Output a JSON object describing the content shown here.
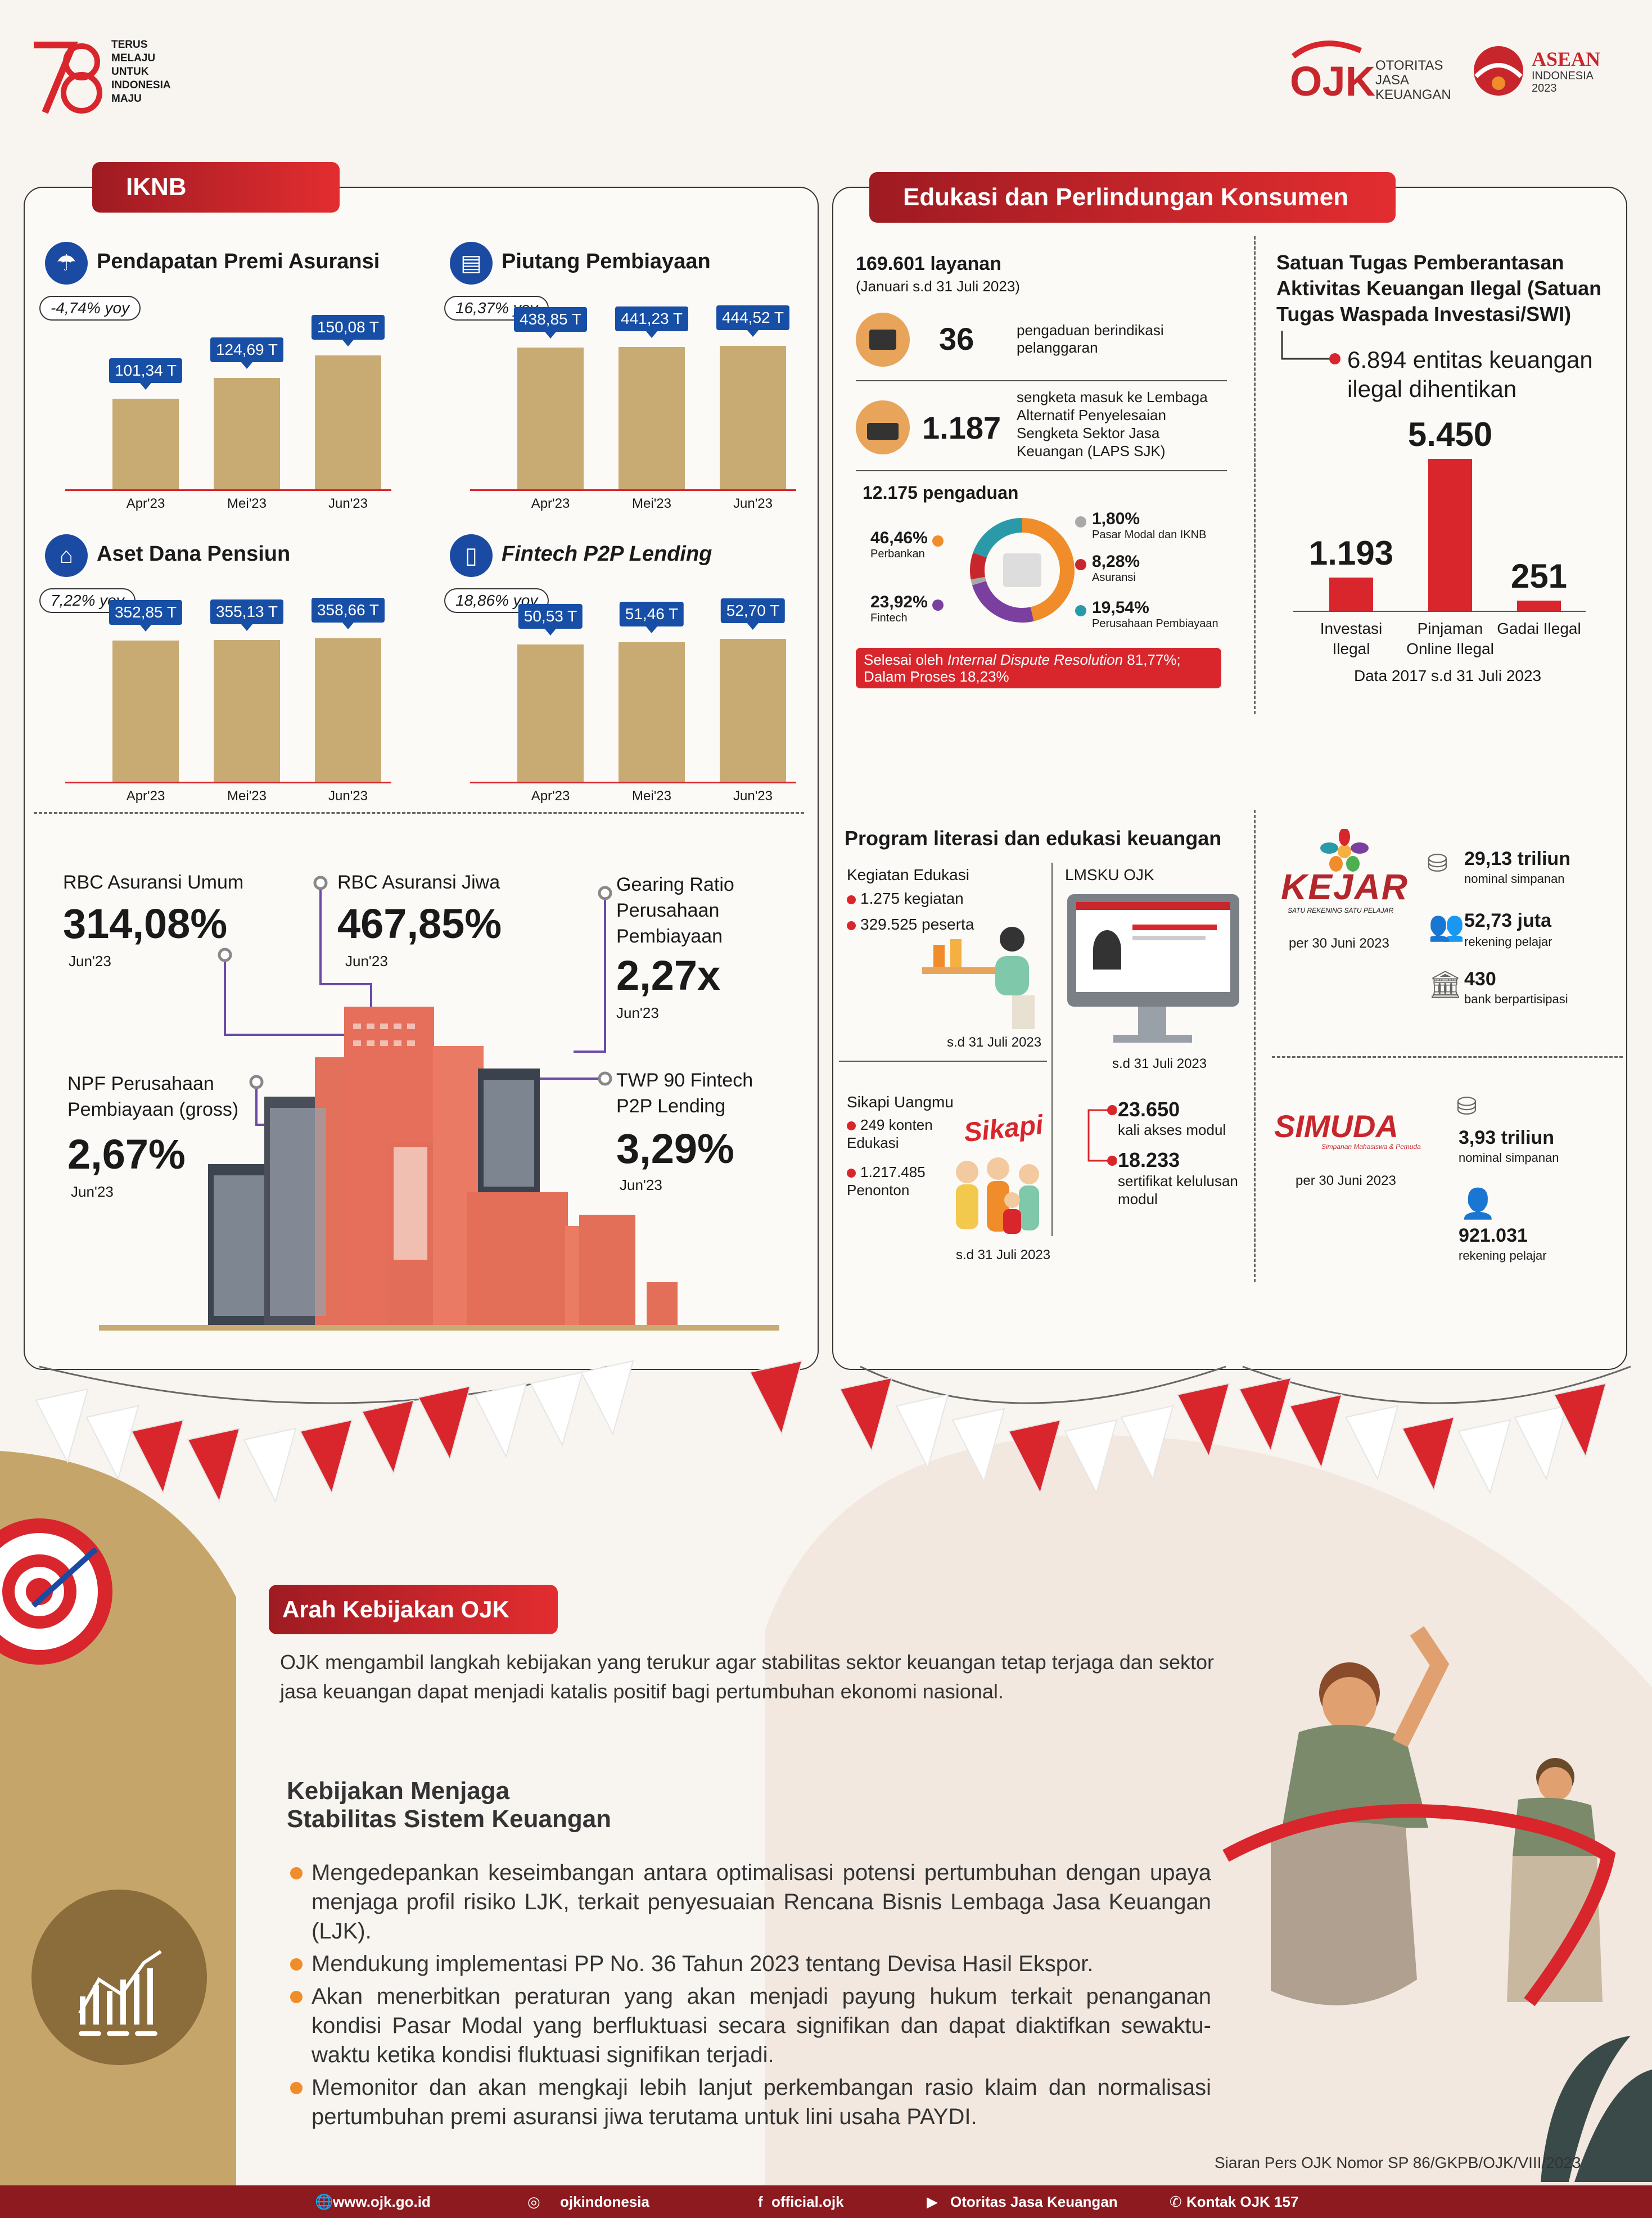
{
  "header": {
    "logo78_text": "TERUS MELAJU UNTUK INDONESIA MAJU",
    "ojk_text": [
      "OTORITAS",
      "JASA",
      "KEUANGAN"
    ],
    "ojk_mark": "OJK",
    "asean_title": "ASEAN",
    "asean_sub": "INDONESIA",
    "asean_year": "2023"
  },
  "iknb": {
    "title": "IKNB",
    "cards": [
      {
        "title": "Pendapatan Premi Asuransi",
        "yoy": "-4,74% yoy",
        "icon": "umbrella-hand-icon",
        "categories": [
          "Apr'23",
          "Mei'23",
          "Jun'23"
        ],
        "values": [
          101.34,
          124.69,
          150.08
        ],
        "labels": [
          "101,34 T",
          "124,69 T",
          "150,08 T"
        ],
        "ymax": 170
      },
      {
        "title": "Piutang Pembiayaan",
        "yoy": "16,37% yoy",
        "icon": "document-money-icon",
        "categories": [
          "Apr'23",
          "Mei'23",
          "Jun'23"
        ],
        "values": [
          438.85,
          441.23,
          444.52
        ],
        "labels": [
          "438,85 T",
          "441,23 T",
          "444,52 T"
        ],
        "ymax": 470
      },
      {
        "title": "Aset Dana Pensiun",
        "yoy": "7,22% yoy",
        "icon": "pension-chair-icon",
        "categories": [
          "Apr'23",
          "Mei'23",
          "Jun'23"
        ],
        "values": [
          352.85,
          355.13,
          358.66
        ],
        "labels": [
          "352,85 T",
          "355,13 T",
          "358,66 T"
        ],
        "ymax": 380
      },
      {
        "title": "Fintech P2P Lending",
        "yoy": "18,86% yoy",
        "icon": "phone-icon",
        "categories": [
          "Apr'23",
          "Mei'23",
          "Jun'23"
        ],
        "values": [
          50.53,
          51.46,
          52.7
        ],
        "labels": [
          "50,53 T",
          "51,46 T",
          "52,70 T"
        ],
        "ymax": 56
      }
    ],
    "ratios": {
      "rbc_umum_label": "RBC Asuransi Umum",
      "rbc_umum_value": "314,08%",
      "rbc_umum_date": "Jun'23",
      "rbc_jiwa_label": "RBC Asuransi Jiwa",
      "rbc_jiwa_value": "467,85%",
      "rbc_jiwa_date": "Jun'23",
      "gearing_label": "Gearing Ratio Perusahaan Pembiayaan",
      "gearing_value": "2,27x",
      "gearing_date": "Jun'23",
      "npf_label": "NPF Perusahaan Pembiayaan (gross)",
      "npf_value": "2,67%",
      "npf_date": "Jun'23",
      "twp_label": "TWP 90 Fintech P2P Lending",
      "twp_value": "3,29%",
      "twp_date": "Jun'23"
    }
  },
  "edukasi": {
    "title": "Edukasi dan Perlindungan Konsumen",
    "layanan": "169.601 layanan",
    "layanan_period": "(Januari s.d 31 Juli 2023)",
    "pengaduan_count": "36",
    "pengaduan_text": "pengaduan berindikasi pelanggaran",
    "sengketa_count": "1.187",
    "sengketa_text": "sengketa masuk ke Lembaga Alternatif Penyelesaian Sengketa Sektor Jasa Keuangan (LAPS SJK)",
    "pengaduan_total": "12.175 pengaduan",
    "chart_data": {
      "type": "pie",
      "categories": [
        "Perbankan",
        "Fintech",
        "Pasar Modal dan IKNB",
        "Asuransi",
        "Perusahaan Pembiayaan"
      ],
      "values": [
        46.46,
        23.92,
        1.8,
        8.28,
        19.54
      ],
      "labels": [
        "46,46%",
        "23,92%",
        "1,80%",
        "8,28%",
        "19,54%"
      ],
      "colors": [
        "#f08d2a",
        "#7b3fa0",
        "#a9a9a9",
        "#c8262d",
        "#2a9aa8"
      ]
    },
    "resolution_text_a": "Selesai oleh ",
    "resolution_text_em": "Internal Dispute Resolution",
    "resolution_text_b": " 81,77%;",
    "resolution_text_c": "Dalam Proses 18,23%"
  },
  "satgas": {
    "title": "Satuan Tugas Pemberantasan Aktivitas Keuangan Ilegal (Satuan Tugas Waspada Investasi/SWI)",
    "entitas": "6.894 entitas keuangan ilegal dihentikan",
    "chart_data": {
      "type": "bar",
      "categories": [
        "Investasi Ilegal",
        "Pinjaman Online Ilegal",
        "Gadai Ilegal"
      ],
      "values": [
        1193,
        5450,
        251
      ],
      "labels": [
        "1.193",
        "5.450",
        "251"
      ]
    },
    "period": "Data 2017 s.d 31 Juli 2023"
  },
  "literasi": {
    "title": "Program literasi dan edukasi keuangan",
    "kegiatan_title": "Kegiatan Edukasi",
    "kegiatan_1": "1.275 kegiatan",
    "kegiatan_2": "329.525 peserta",
    "kegiatan_date": "s.d 31 Juli 2023",
    "lmsku_title": "LMSKU OJK",
    "lmsku_date": "s.d 31 Juli 2023",
    "lmsku_akses_value": "23.650",
    "lmsku_akses_label": "kali akses modul",
    "lmsku_sertifikat_value": "18.233",
    "lmsku_sertifikat_label": "sertifikat kelulusan modul",
    "sikapi_title": "Sikapi Uangmu",
    "sikapi_1": "249 konten Edukasi",
    "sikapi_2": "1.217.485 Penonton",
    "sikapi_date": "s.d 31 Juli 2023",
    "sikapi_logo": "Sikapi"
  },
  "kejar": {
    "logo": "KEJAR",
    "tagline": "SATU REKENING SATU PELAJAR",
    "date": "per 30 Juni 2023",
    "s1_value": "29,13 triliun",
    "s1_label": "nominal simpanan",
    "s2_value": "52,73 juta",
    "s2_label": "rekening pelajar",
    "s3_value": "430",
    "s3_label": "bank berpartisipasi"
  },
  "simuda": {
    "logo": "SIMUDA",
    "tagline": "Simpanan Mahasiswa & Pemuda",
    "date": "per 30 Juni 2023",
    "s1_value": "3,93 triliun",
    "s1_label": "nominal simpanan",
    "s2_value": "921.031",
    "s2_label": "rekening pelajar"
  },
  "arah": {
    "title": "Arah Kebijakan OJK",
    "intro": "OJK mengambil langkah kebijakan yang terukur agar stabilitas sektor keuangan tetap terjaga dan sektor jasa keuangan dapat menjadi katalis positif bagi pertumbuhan ekonomi nasional.",
    "subtitle_1": "Kebijakan Menjaga",
    "subtitle_2": "Stabilitas Sistem Keuangan",
    "bullets": [
      "Mengedepankan keseimbangan antara optimalisasi potensi pertumbuhan dengan upaya menjaga profil risiko LJK, terkait penyesuaian Rencana Bisnis Lembaga Jasa Keuangan (LJK).",
      "Mendukung implementasi PP No. 36 Tahun 2023 tentang Devisa Hasil Ekspor.",
      "Akan menerbitkan peraturan yang akan menjadi payung hukum terkait penanganan kondisi Pasar Modal yang berfluktuasi secara signifikan dan dapat diaktifkan sewaktu-waktu ketika kondisi fluktuasi signifikan terjadi.",
      "Memonitor dan akan mengkaji lebih lanjut perkembangan rasio klaim dan normalisasi pertumbuhan premi asuransi jiwa terutama untuk lini usaha PAYDI."
    ],
    "siaran": "Siaran Pers OJK Nomor SP 86/GKPB/OJK/VIII/2023"
  },
  "footer": {
    "web": "www.ojk.go.id",
    "social": "ojkindonesia",
    "fb": "official.ojk",
    "yt": "Otoritas Jasa Keuangan",
    "kontak": "Kontak OJK 157"
  }
}
